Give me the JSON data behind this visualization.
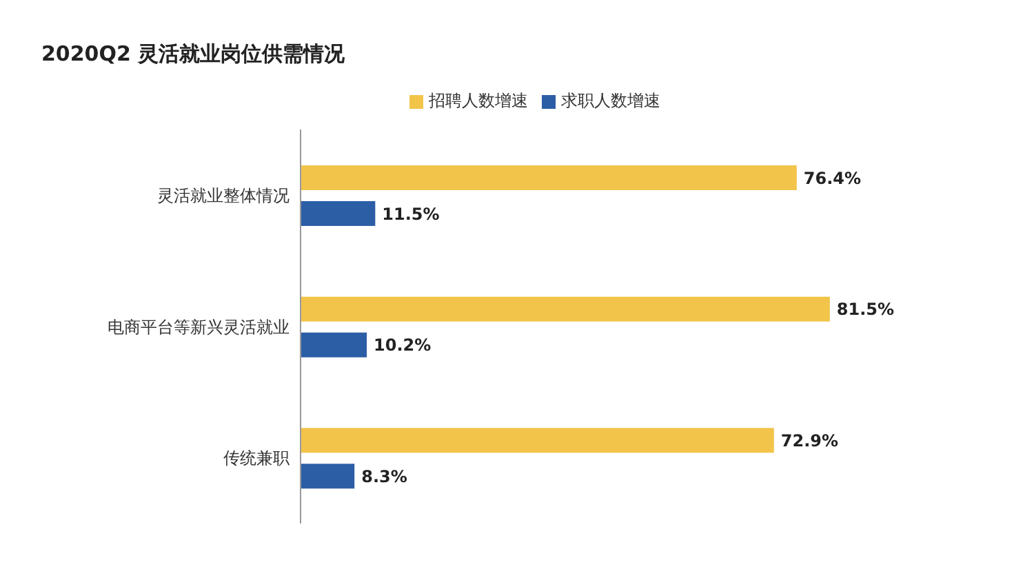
{
  "chart_data": {
    "type": "bar",
    "orientation": "horizontal",
    "title": "2020Q2 灵活就业岗位供需情况",
    "categories": [
      "灵活就业整体情况",
      "电商平台等新兴灵活就业",
      "传统兼职"
    ],
    "series": [
      {
        "name": "招聘人数增速",
        "color": "#f2c44a",
        "values": [
          76.4,
          81.5,
          72.9
        ],
        "value_labels": [
          "76.4%",
          "81.5%",
          "72.9%"
        ]
      },
      {
        "name": "求职人数增速",
        "color": "#2c5ea6",
        "values": [
          11.5,
          10.2,
          8.3
        ],
        "value_labels": [
          "11.5%",
          "10.2%",
          "8.3%"
        ]
      }
    ],
    "legend": "top"
  }
}
